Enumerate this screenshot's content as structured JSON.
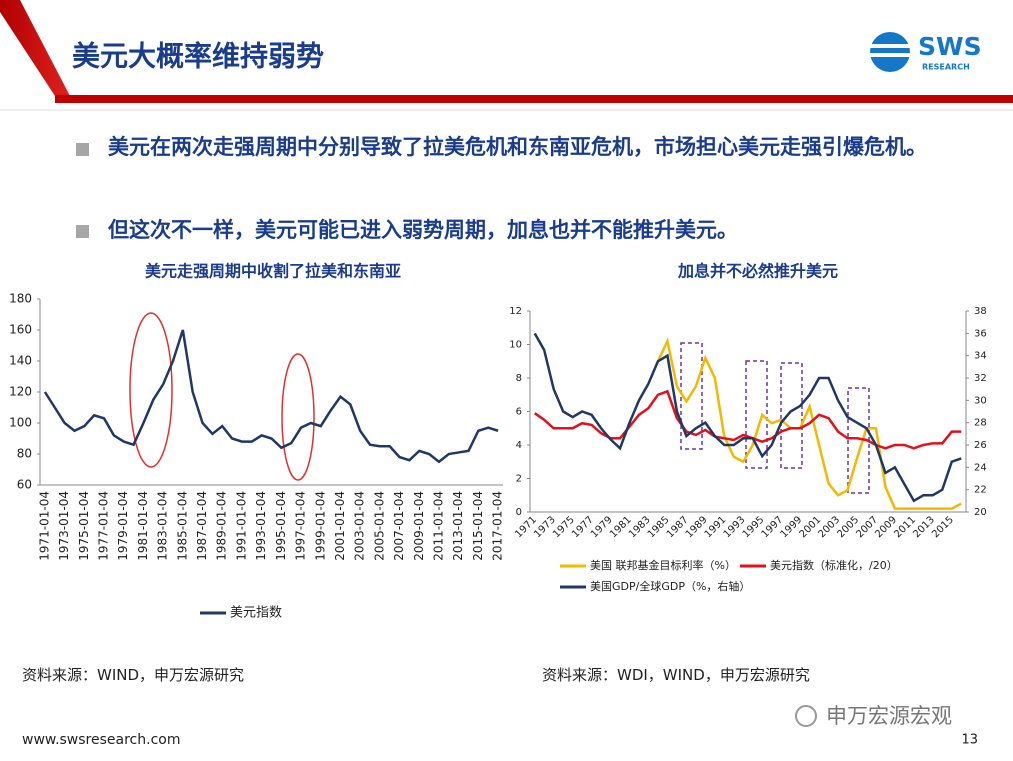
{
  "slide": {
    "title": "美元大概率维持弱势",
    "logo": "SWS",
    "logo_sub": "RESEARCH",
    "bullets": [
      "美元在两次走强周期中分别导致了拉美危机和东南亚危机，市场担心美元走强引爆危机。",
      "但这次不一样，美元可能已进入弱势周期，加息也并不能推升美元。"
    ],
    "sources": [
      "资料来源：WIND，申万宏源研究",
      "资料来源：WDI，WIND，申万宏源研究"
    ],
    "url": "www.swsresearch.com",
    "page": "13",
    "watermark": "申万宏源宏观"
  },
  "chart_data": [
    {
      "type": "line",
      "title": "美元走强周期中收割了拉美和东南亚",
      "categories": [
        "1971-01-04",
        null,
        "1973-01-04",
        null,
        "1975-01-04",
        null,
        "1977-01-04",
        null,
        "1979-01-04",
        null,
        "1981-01-04",
        null,
        "1983-01-04",
        null,
        "1985-01-04",
        null,
        "1987-01-04",
        null,
        "1989-01-04",
        null,
        "1991-01-04",
        null,
        "1993-01-04",
        null,
        "1995-01-04",
        null,
        "1997-01-04",
        null,
        "1999-01-04",
        null,
        "2001-01-04",
        null,
        "2003-01-04",
        null,
        "2005-01-04",
        null,
        "2007-01-04",
        null,
        "2009-01-04",
        null,
        "2011-01-04",
        null,
        "2013-01-04",
        null,
        "2015-01-04",
        null,
        "2017-01-04"
      ],
      "series": [
        {
          "name": "美元指数",
          "color": "#1f3864",
          "values": [
            120,
            110,
            100,
            95,
            98,
            105,
            103,
            92,
            88,
            86,
            100,
            115,
            125,
            140,
            160,
            120,
            100,
            93,
            98,
            90,
            88,
            88,
            92,
            90,
            84,
            87,
            97,
            100,
            98,
            108,
            117,
            112,
            95,
            86,
            85,
            85,
            78,
            76,
            82,
            80,
            75,
            80,
            81,
            82,
            95,
            97,
            95
          ]
        }
      ],
      "ylim": [
        60,
        180
      ],
      "yticks": [
        60,
        80,
        100,
        120,
        140,
        160,
        180
      ],
      "legend": "bottom"
    },
    {
      "type": "line",
      "title": "加息并不必然推升美元",
      "categories": [
        "1971",
        null,
        "1973",
        null,
        "1975",
        null,
        "1977",
        null,
        "1979",
        null,
        "1981",
        null,
        "1983",
        null,
        "1985",
        null,
        "1987",
        null,
        "1989",
        null,
        "1991",
        null,
        "1993",
        null,
        "1995",
        null,
        "1997",
        null,
        "1999",
        null,
        "2001",
        null,
        "2003",
        null,
        "2005",
        null,
        "2007",
        null,
        "2009",
        null,
        "2011",
        null,
        "2013",
        null,
        "2015",
        null
      ],
      "series": [
        {
          "name": "美国 联邦基金目标利率（%）",
          "color": "#f5b800",
          "values": [
            null,
            null,
            null,
            null,
            null,
            null,
            null,
            null,
            null,
            null,
            null,
            null,
            null,
            9,
            10.2,
            7.5,
            6.6,
            7.5,
            9.2,
            8,
            4.5,
            3.3,
            3,
            4,
            5.8,
            5.3,
            5.5,
            5,
            5,
            6.3,
            4,
            1.7,
            1,
            1.3,
            3.2,
            5,
            5,
            1.5,
            0.2,
            0.2,
            0.2,
            0.2,
            0.2,
            0.2,
            0.2,
            0.5
          ]
        },
        {
          "name": "美元指数（标准化，/20）",
          "color": "#e3101b",
          "values": [
            5.9,
            5.5,
            5.0,
            5.0,
            5.0,
            5.3,
            5.2,
            4.7,
            4.4,
            4.4,
            5.1,
            5.8,
            6.2,
            7.0,
            7.2,
            5.6,
            4.8,
            4.6,
            4.9,
            4.5,
            4.4,
            4.3,
            4.6,
            4.4,
            4.2,
            4.4,
            4.8,
            5.0,
            5.0,
            5.3,
            5.8,
            5.6,
            4.8,
            4.4,
            4.4,
            4.3,
            4.0,
            3.8,
            4.0,
            4.0,
            3.8,
            4.0,
            4.1,
            4.1,
            4.8,
            4.8
          ]
        },
        {
          "name": "美国GDP/全球GDP（%，右轴）",
          "color": "#1f3864",
          "axis": "y2",
          "values": [
            36,
            34.5,
            31,
            29,
            28.5,
            29,
            28.7,
            27.5,
            26.5,
            25.7,
            28,
            30,
            31.5,
            33.5,
            34,
            29,
            26.8,
            27.5,
            28,
            26.8,
            26,
            26,
            26.6,
            26.6,
            25,
            26,
            28,
            29,
            29.5,
            30.5,
            32,
            32,
            30,
            28.5,
            28,
            27.5,
            26,
            23.5,
            24,
            22.5,
            21,
            21.5,
            21.5,
            22,
            24.5,
            24.8
          ]
        }
      ],
      "ylim": [
        0,
        12
      ],
      "yticks": [
        0,
        2,
        4,
        6,
        8,
        10,
        12
      ],
      "y2lim": [
        20,
        38
      ],
      "y2ticks": [
        20,
        22,
        24,
        26,
        28,
        30,
        32,
        34,
        36,
        38
      ],
      "legend": "bottom"
    }
  ]
}
